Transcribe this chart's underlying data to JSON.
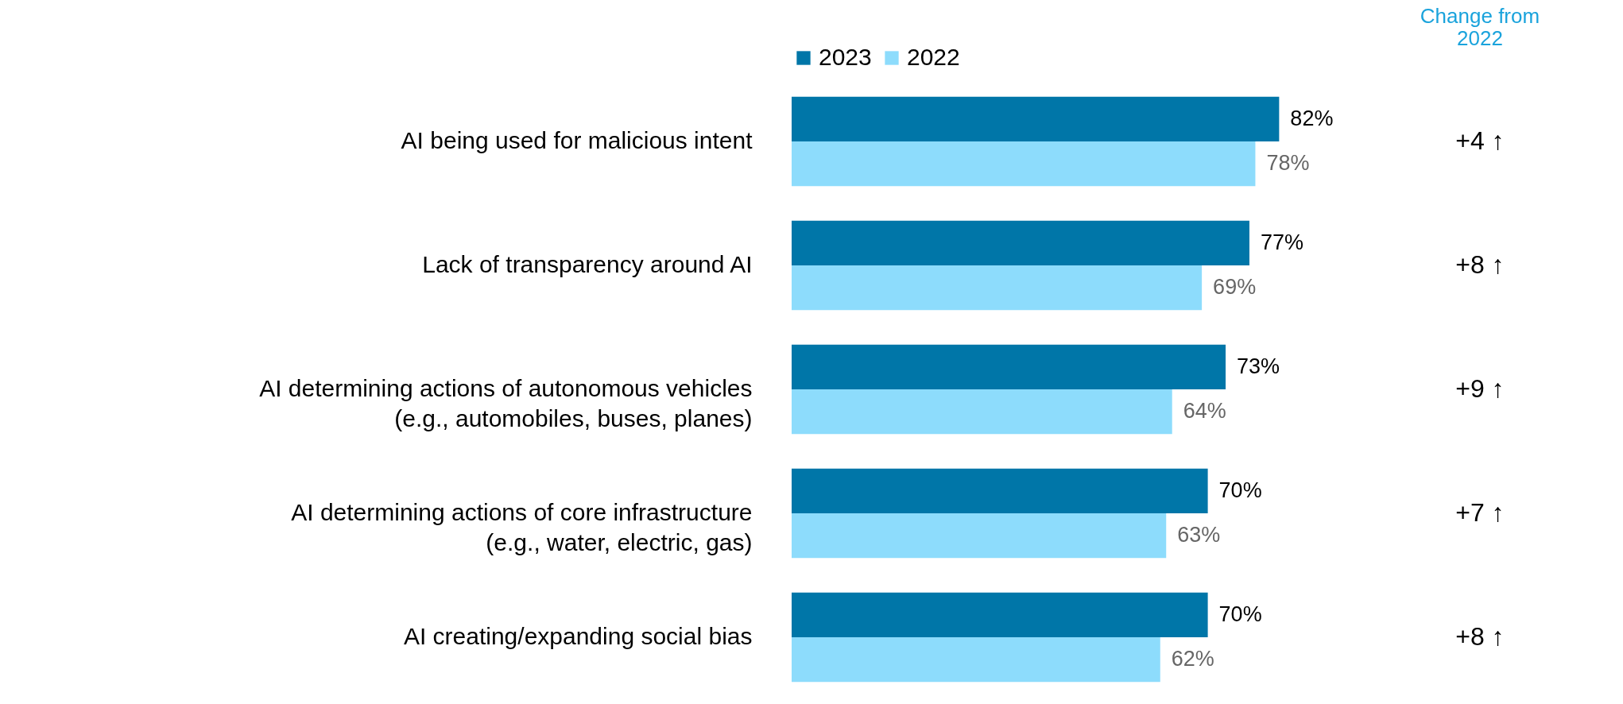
{
  "chart_data": {
    "type": "bar",
    "orientation": "horizontal",
    "legend": "top",
    "categories": [
      "AI being used for malicious intent",
      "Lack of transparency around AI",
      "AI determining actions of autonomous vehicles\n(e.g., automobiles, buses, planes)",
      "AI determining actions of core infrastructure\n(e.g., water, electric, gas)",
      "AI creating/expanding social bias"
    ],
    "series": [
      {
        "name": "2023",
        "color": "#0076a8",
        "values": [
          82,
          77,
          73,
          70,
          70
        ],
        "value_labels": [
          "82%",
          "77%",
          "73%",
          "70%",
          "70%"
        ]
      },
      {
        "name": "2022",
        "color": "#8ddcfc",
        "values": [
          78,
          69,
          64,
          63,
          62
        ],
        "value_labels": [
          "78%",
          "69%",
          "64%",
          "63%",
          "62%"
        ]
      }
    ],
    "annotations": [
      "Change from\n2022",
      "+4 ↑",
      "+8 ↑",
      "+9 ↑",
      "+7 ↑",
      "+8 ↑"
    ]
  }
}
